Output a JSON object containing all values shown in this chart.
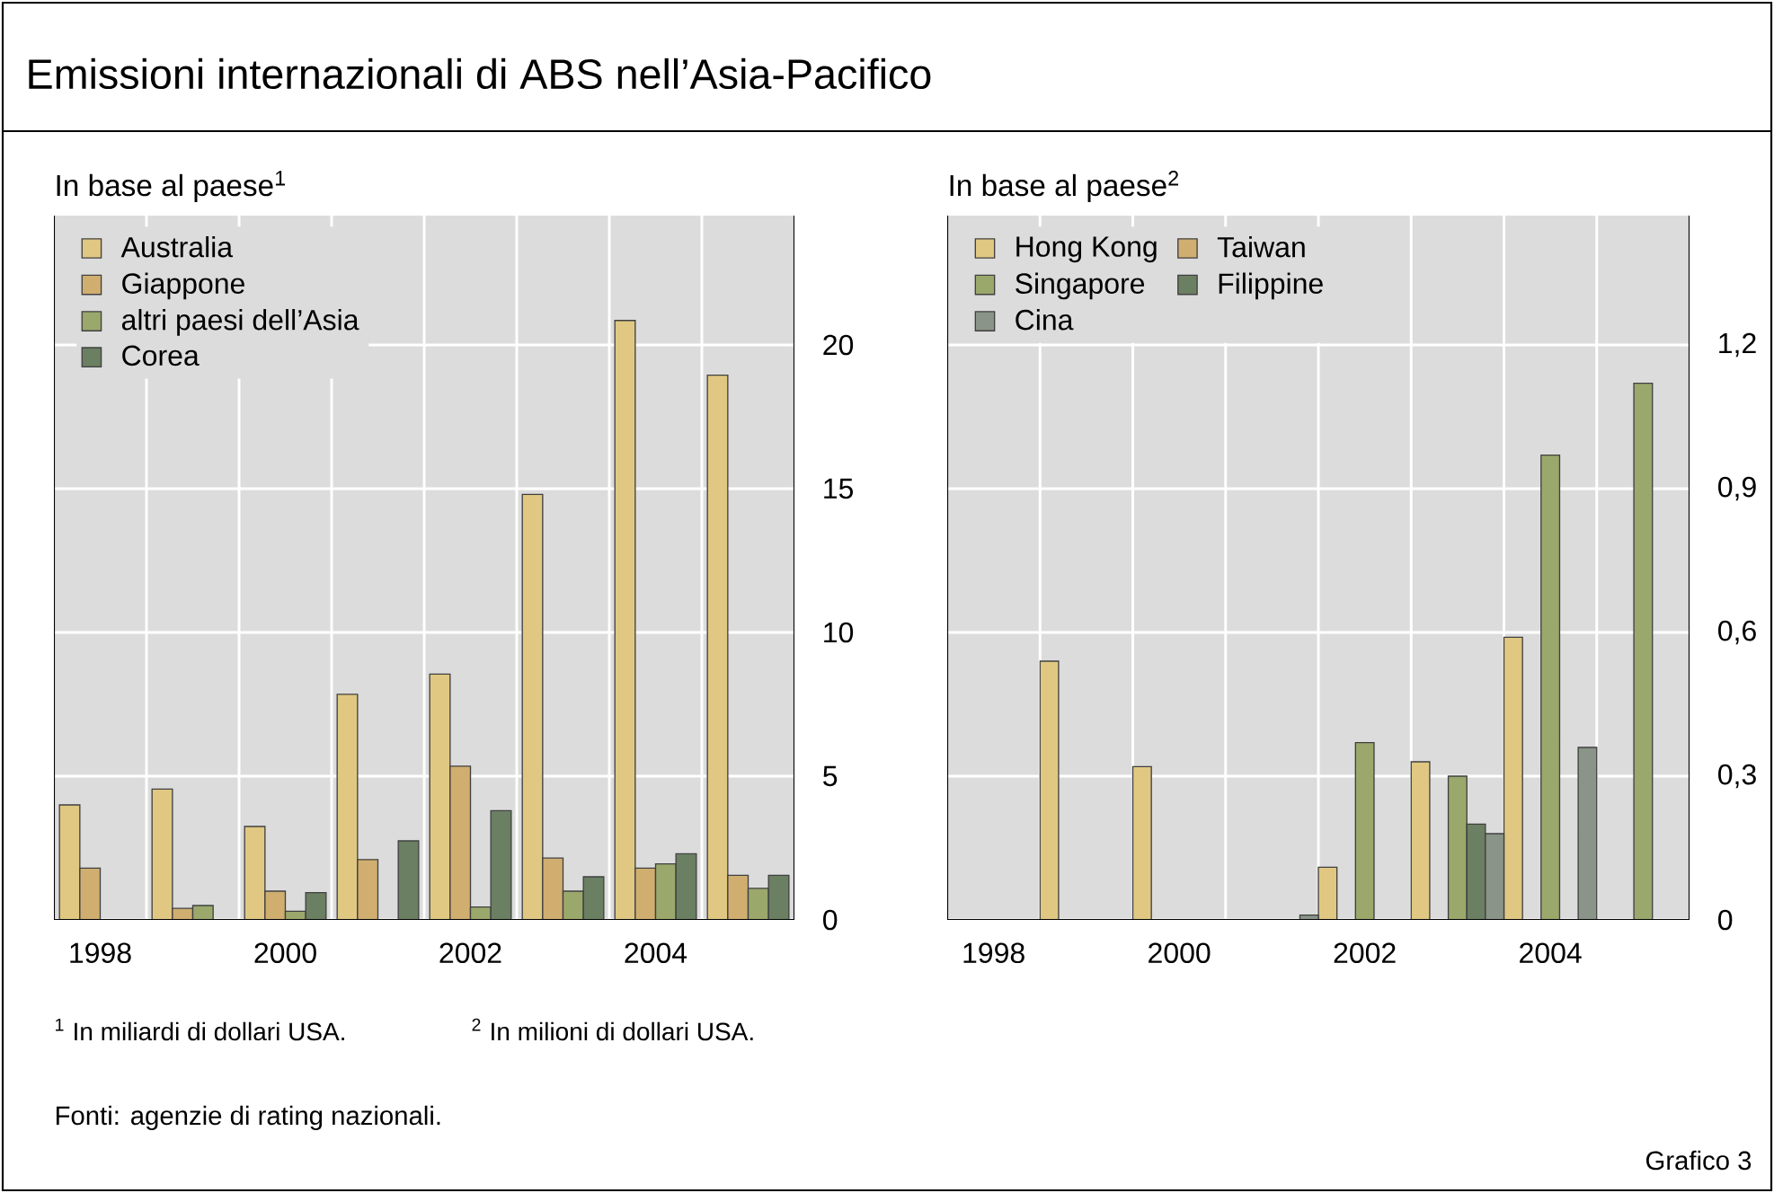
{
  "chart_data": [
    {
      "type": "bar",
      "title": "Emissioni internazionali di ABS nell’Asia-Pacifico",
      "subtitle": "In base al paese$^{1}$",
      "categories": [
        "1998",
        null,
        "2000",
        null,
        "2002",
        null,
        "2004",
        null
      ],
      "series": [
        {
          "name": "Australia",
          "color": "#e0c882",
          "values": [
            4.0,
            4.55,
            3.25,
            7.85,
            8.55,
            14.8,
            20.85,
            18.95
          ]
        },
        {
          "name": "Giappone",
          "color": "#d0ae70",
          "values": [
            1.8,
            0.4,
            1.0,
            2.1,
            5.35,
            2.15,
            1.8,
            1.55
          ]
        },
        {
          "name": "altri paesi dell’Asia",
          "color": "#9aa86c",
          "values": [
            null,
            0.5,
            0.3,
            null,
            0.45,
            1.0,
            1.95,
            1.1
          ]
        },
        {
          "name": "Corea",
          "color": "#6b7f62",
          "values": [
            null,
            null,
            0.95,
            2.75,
            3.8,
            1.5,
            2.3,
            1.55
          ]
        }
      ],
      "ylim": [
        0,
        24.5
      ],
      "yticks": [
        0,
        5,
        10,
        15,
        20
      ],
      "grid": true,
      "legend": "top left",
      "annotations": [
        "$^{1}$  In miliardi di dollari USA.",
        "Fonti: agenzie di rating nazionali.",
        "Grafico 3"
      ]
    },
    {
      "type": "bar",
      "subtitle": "In base al paese$^{2}$",
      "categories": [
        "1998",
        null,
        "2000",
        null,
        "2002",
        null,
        "2004",
        null
      ],
      "series": [
        {
          "name": "Hong Kong",
          "color": "#e0c882",
          "values": [
            null,
            0.54,
            0.32,
            null,
            0.11,
            0.33,
            0.59,
            null
          ]
        },
        {
          "name": "Taiwan",
          "color": "#d0ae70",
          "values": [
            null,
            null,
            null,
            null,
            null,
            null,
            null,
            null
          ]
        },
        {
          "name": "Singapore",
          "color": "#9aa86c",
          "values": [
            null,
            null,
            null,
            null,
            0.37,
            0.3,
            0.97,
            1.12
          ]
        },
        {
          "name": "Filippine",
          "color": "#6b7f62",
          "values": [
            null,
            null,
            null,
            null,
            null,
            0.2,
            null,
            null
          ]
        },
        {
          "name": "Cina",
          "color": "#8a9488",
          "values": [
            null,
            null,
            null,
            0.01,
            null,
            0.18,
            0.36,
            null
          ]
        }
      ],
      "ylim": [
        0,
        1.47
      ],
      "yticks": [
        0,
        {
          "value": 0.3,
          "label": "0,3"
        },
        {
          "value": 0.6,
          "label": "0,6"
        },
        {
          "value": 0.9,
          "label": "0,9"
        },
        {
          "value": 1.2,
          "label": "1,2"
        }
      ],
      "grid": true,
      "legend": "top left",
      "annotations": [
        "$^{2}$  In milioni di dollari USA."
      ]
    }
  ]
}
